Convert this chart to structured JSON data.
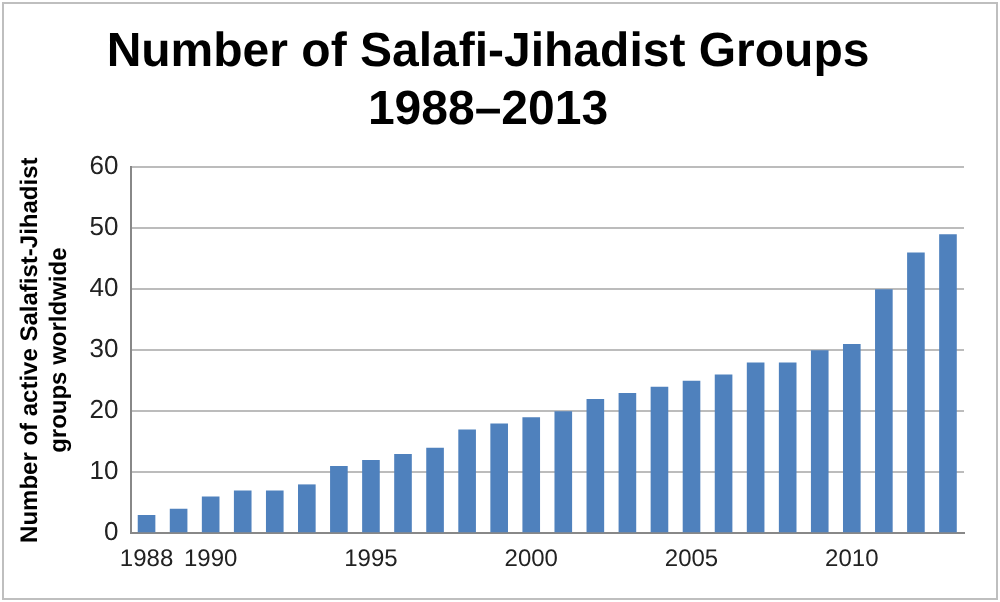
{
  "chart_data": {
    "type": "bar",
    "title": "Number of Salafi-Jihadist Groups\n1988–2013",
    "ylabel": "Number of active Salafist-Jihadist\ngroups worldwide",
    "categories": [
      "1988",
      null,
      "1990",
      null,
      null,
      null,
      null,
      "1995",
      null,
      null,
      null,
      null,
      "2000",
      null,
      null,
      null,
      null,
      "2005",
      null,
      null,
      null,
      null,
      "2010",
      null,
      null,
      null
    ],
    "values": [
      3,
      4,
      6,
      7,
      7,
      8,
      11,
      12,
      13,
      14,
      17,
      18,
      19,
      20,
      22,
      23,
      24,
      25,
      26,
      28,
      28,
      30,
      31,
      40,
      46,
      49
    ],
    "color": "#4f81bd",
    "ylim": [
      0,
      60
    ],
    "yticks": [
      0,
      10,
      20,
      30,
      40,
      50,
      60
    ],
    "grid": "y",
    "legend": false
  }
}
